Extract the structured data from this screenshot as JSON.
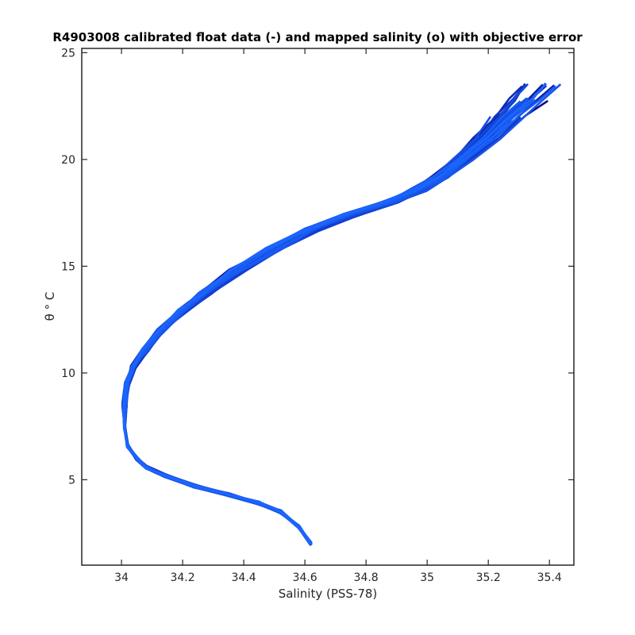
{
  "chart_data": {
    "type": "line",
    "title": "R4903008 calibrated float data (-) and mapped salinity (o) with objective error",
    "xlabel": "Salinity (PSS-78)",
    "ylabel": "θ ° C",
    "xlim": [
      33.87,
      35.48
    ],
    "ylim": [
      1.0,
      25.2
    ],
    "xticks": [
      34,
      34.2,
      34.4,
      34.6,
      34.8,
      35,
      35.2,
      35.4
    ],
    "xtick_labels": [
      "34",
      "34.2",
      "34.4",
      "34.6",
      "34.8",
      "35",
      "35.2",
      "35.4"
    ],
    "yticks": [
      5,
      10,
      15,
      20,
      25
    ],
    "ytick_labels": [
      "5",
      "10",
      "15",
      "20",
      "25"
    ],
    "grid": false,
    "legend": "none",
    "colors": {
      "early_profiles": "#0a0a8c",
      "late_profiles": "#1a66ff"
    },
    "profile_count": 36,
    "base_profile": {
      "salinity": [
        34.62,
        34.58,
        34.52,
        34.45,
        34.35,
        34.24,
        34.14,
        34.08,
        34.05,
        34.02,
        34.01,
        34.01,
        34.02,
        34.04,
        34.08,
        34.13,
        34.2,
        34.28,
        34.38,
        34.5,
        34.62,
        34.75,
        34.88,
        34.98,
        35.05,
        35.12,
        35.2,
        35.27,
        35.33,
        35.38
      ],
      "theta": [
        2.0,
        2.8,
        3.5,
        3.9,
        4.3,
        4.7,
        5.2,
        5.6,
        6.0,
        6.6,
        7.5,
        8.5,
        9.5,
        10.3,
        11.1,
        12.0,
        12.9,
        13.8,
        14.8,
        15.8,
        16.7,
        17.4,
        18.0,
        18.6,
        19.2,
        20.0,
        21.0,
        22.0,
        22.8,
        23.5
      ]
    }
  }
}
